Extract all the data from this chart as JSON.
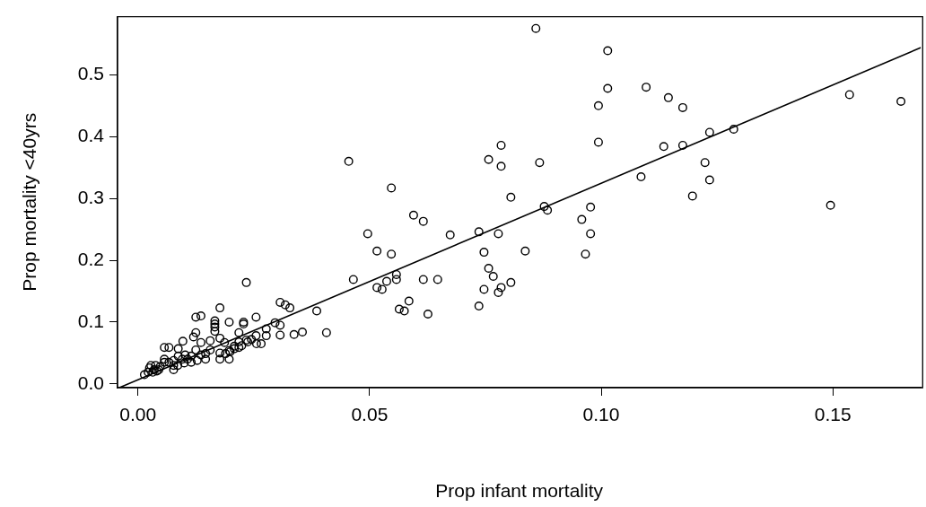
{
  "chart_data": {
    "type": "scatter",
    "xlabel": "Prop infant mortality",
    "ylabel": "Prop mortality <40yrs",
    "xlim": [
      -0.0044,
      0.169
    ],
    "ylim": [
      -0.006,
      0.594
    ],
    "xticks": [
      {
        "value": 0,
        "label": "0.00"
      },
      0.05,
      {
        "value": 0.1,
        "label": "0.10"
      },
      0.15
    ],
    "yticks": [
      {
        "value": 0,
        "label": "0.0"
      },
      0.1,
      0.2,
      0.3,
      0.4,
      0.5
    ],
    "grid": false,
    "series": [
      {
        "color": "#000000",
        "marker": "circle",
        "x": [
          0.1014,
          0.1014,
          0.0994,
          0.1097,
          0.1145,
          0.1176,
          0.0994,
          0.1135,
          0.1176,
          0.1234,
          0.1286,
          0.1086,
          0.1224,
          0.1234,
          0.1197,
          0.1536,
          0.1647,
          0.1495,
          0.0977,
          0.0958,
          0.0977,
          0.0966,
          0.0859,
          0.0455,
          0.0784,
          0.0757,
          0.0784,
          0.0867,
          0.0547,
          0.0805,
          0.0595,
          0.0616,
          0.0496,
          0.0674,
          0.0736,
          0.0778,
          0.0877,
          0.0884,
          0.0516,
          0.0547,
          0.0747,
          0.0836,
          0.0465,
          0.0558,
          0.0558,
          0.0537,
          0.0516,
          0.0527,
          0.0616,
          0.0647,
          0.0757,
          0.0767,
          0.0747,
          0.0784,
          0.0778,
          0.0805,
          0.0736,
          0.0585,
          0.0564,
          0.0575,
          0.0626,
          0.0234,
          0.0386,
          0.0407,
          0.0307,
          0.0318,
          0.0328,
          0.0177,
          0.0125,
          0.0136,
          0.0255,
          0.0197,
          0.0228,
          0.0228,
          0.0166,
          0.0166,
          0.0166,
          0.0166,
          0.0296,
          0.0307,
          0.0307,
          0.0277,
          0.0337,
          0.0355,
          0.0218,
          0.0125,
          0.012,
          0.0097,
          0.0057,
          0.0067,
          0.0087,
          0.0136,
          0.0156,
          0.0177,
          0.0187,
          0.0234,
          0.0245,
          0.0255,
          0.0277,
          0.0266,
          0.0256,
          0.0218,
          0.0208,
          0.0197,
          0.0177,
          0.0177,
          0.0146,
          0.0146,
          0.0156,
          0.0125,
          0.0136,
          0.0115,
          0.0102,
          0.0107,
          0.0096,
          0.0087,
          0.0077,
          0.0077,
          0.0077,
          0.0067,
          0.0057,
          0.0057,
          0.0048,
          0.0038,
          0.0028,
          0.0025,
          0.0035,
          0.0045,
          0.0022,
          0.0014,
          0.0032,
          0.0041,
          0.0086,
          0.01,
          0.0115,
          0.0128,
          0.0197,
          0.0218,
          0.0224,
          0.0237,
          0.0189,
          0.0199,
          0.0208
        ],
        "values": [
          0.539,
          0.478,
          0.45,
          0.48,
          0.463,
          0.447,
          0.391,
          0.384,
          0.386,
          0.407,
          0.412,
          0.335,
          0.358,
          0.33,
          0.304,
          0.468,
          0.457,
          0.289,
          0.286,
          0.266,
          0.243,
          0.21,
          0.575,
          0.36,
          0.386,
          0.363,
          0.352,
          0.358,
          0.317,
          0.302,
          0.273,
          0.263,
          0.243,
          0.241,
          0.246,
          0.243,
          0.287,
          0.281,
          0.215,
          0.21,
          0.213,
          0.215,
          0.169,
          0.177,
          0.169,
          0.166,
          0.156,
          0.153,
          0.169,
          0.169,
          0.187,
          0.174,
          0.153,
          0.156,
          0.148,
          0.164,
          0.126,
          0.134,
          0.121,
          0.118,
          0.113,
          0.164,
          0.118,
          0.083,
          0.132,
          0.128,
          0.123,
          0.123,
          0.108,
          0.11,
          0.108,
          0.1,
          0.1,
          0.097,
          0.102,
          0.097,
          0.092,
          0.085,
          0.099,
          0.095,
          0.079,
          0.089,
          0.08,
          0.084,
          0.083,
          0.083,
          0.076,
          0.069,
          0.059,
          0.059,
          0.057,
          0.067,
          0.07,
          0.074,
          0.067,
          0.071,
          0.072,
          0.078,
          0.078,
          0.065,
          0.065,
          0.068,
          0.061,
          0.054,
          0.05,
          0.04,
          0.049,
          0.04,
          0.055,
          0.055,
          0.047,
          0.045,
          0.047,
          0.04,
          0.04,
          0.045,
          0.038,
          0.03,
          0.023,
          0.035,
          0.035,
          0.04,
          0.028,
          0.03,
          0.03,
          0.026,
          0.023,
          0.023,
          0.019,
          0.015,
          0.019,
          0.021,
          0.03,
          0.034,
          0.035,
          0.038,
          0.04,
          0.059,
          0.062,
          0.068,
          0.049,
          0.052,
          0.057
        ]
      },
      {
        "type": "line",
        "color": "#000000",
        "marker": "none",
        "x": [
          -0.004,
          0.169
        ],
        "values": [
          -0.006,
          0.544
        ]
      }
    ]
  }
}
